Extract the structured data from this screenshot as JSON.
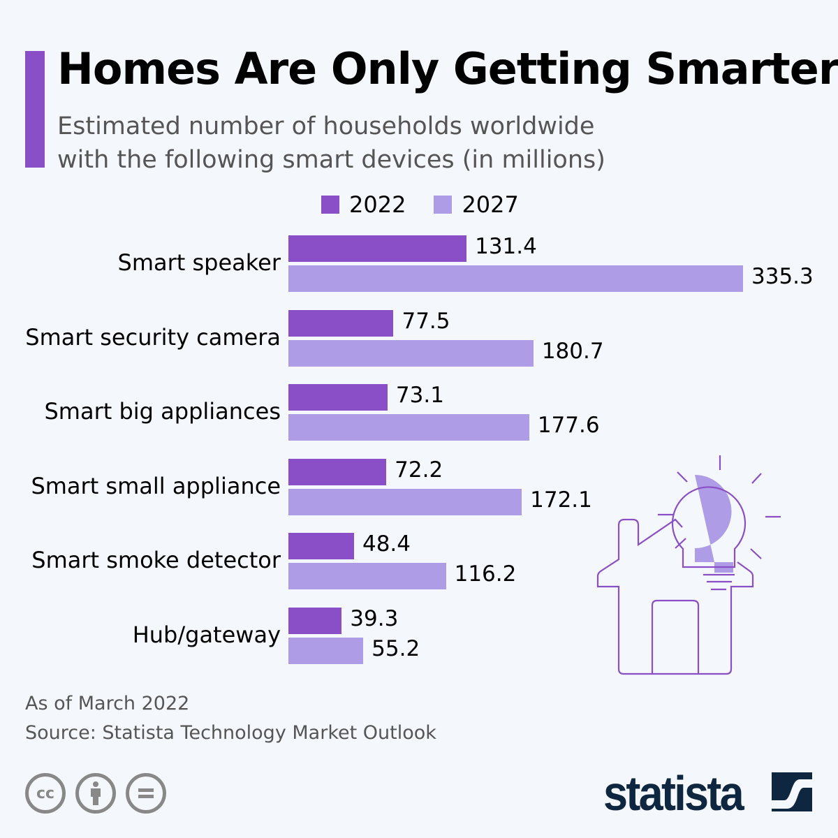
{
  "title": "Homes Are Only Getting Smarter",
  "subtitle_line1": "Estimated number of households worldwide",
  "subtitle_line2": "with the following smart devices (in millions)",
  "footer": {
    "note": "As of March 2022",
    "source": "Source: Statista Technology Market Outlook",
    "brand": "statista"
  },
  "colors": {
    "accent": "#8a4fc7",
    "series_2022": "#8a4fc7",
    "series_2027": "#ae9de6",
    "brand": "#0f2640"
  },
  "icons": [
    "cc-icon",
    "attribution-icon",
    "no-derivatives-icon",
    "house-lightbulb-illustration"
  ],
  "chart_data": {
    "type": "bar",
    "orientation": "horizontal",
    "title": "Homes Are Only Getting Smarter",
    "categories": [
      "Smart speaker",
      "Smart security camera",
      "Smart big appliances",
      "Smart small appliance",
      "Smart smoke detector",
      "Hub/gateway"
    ],
    "series": [
      {
        "name": "2022",
        "values": [
          131.4,
          77.5,
          73.1,
          72.2,
          48.4,
          39.3
        ]
      },
      {
        "name": "2027",
        "values": [
          335.3,
          180.7,
          177.6,
          172.1,
          116.2,
          55.2
        ]
      }
    ],
    "xlim": [
      0,
      335.3
    ],
    "grid": false,
    "legend": "top",
    "data_labels": true
  }
}
